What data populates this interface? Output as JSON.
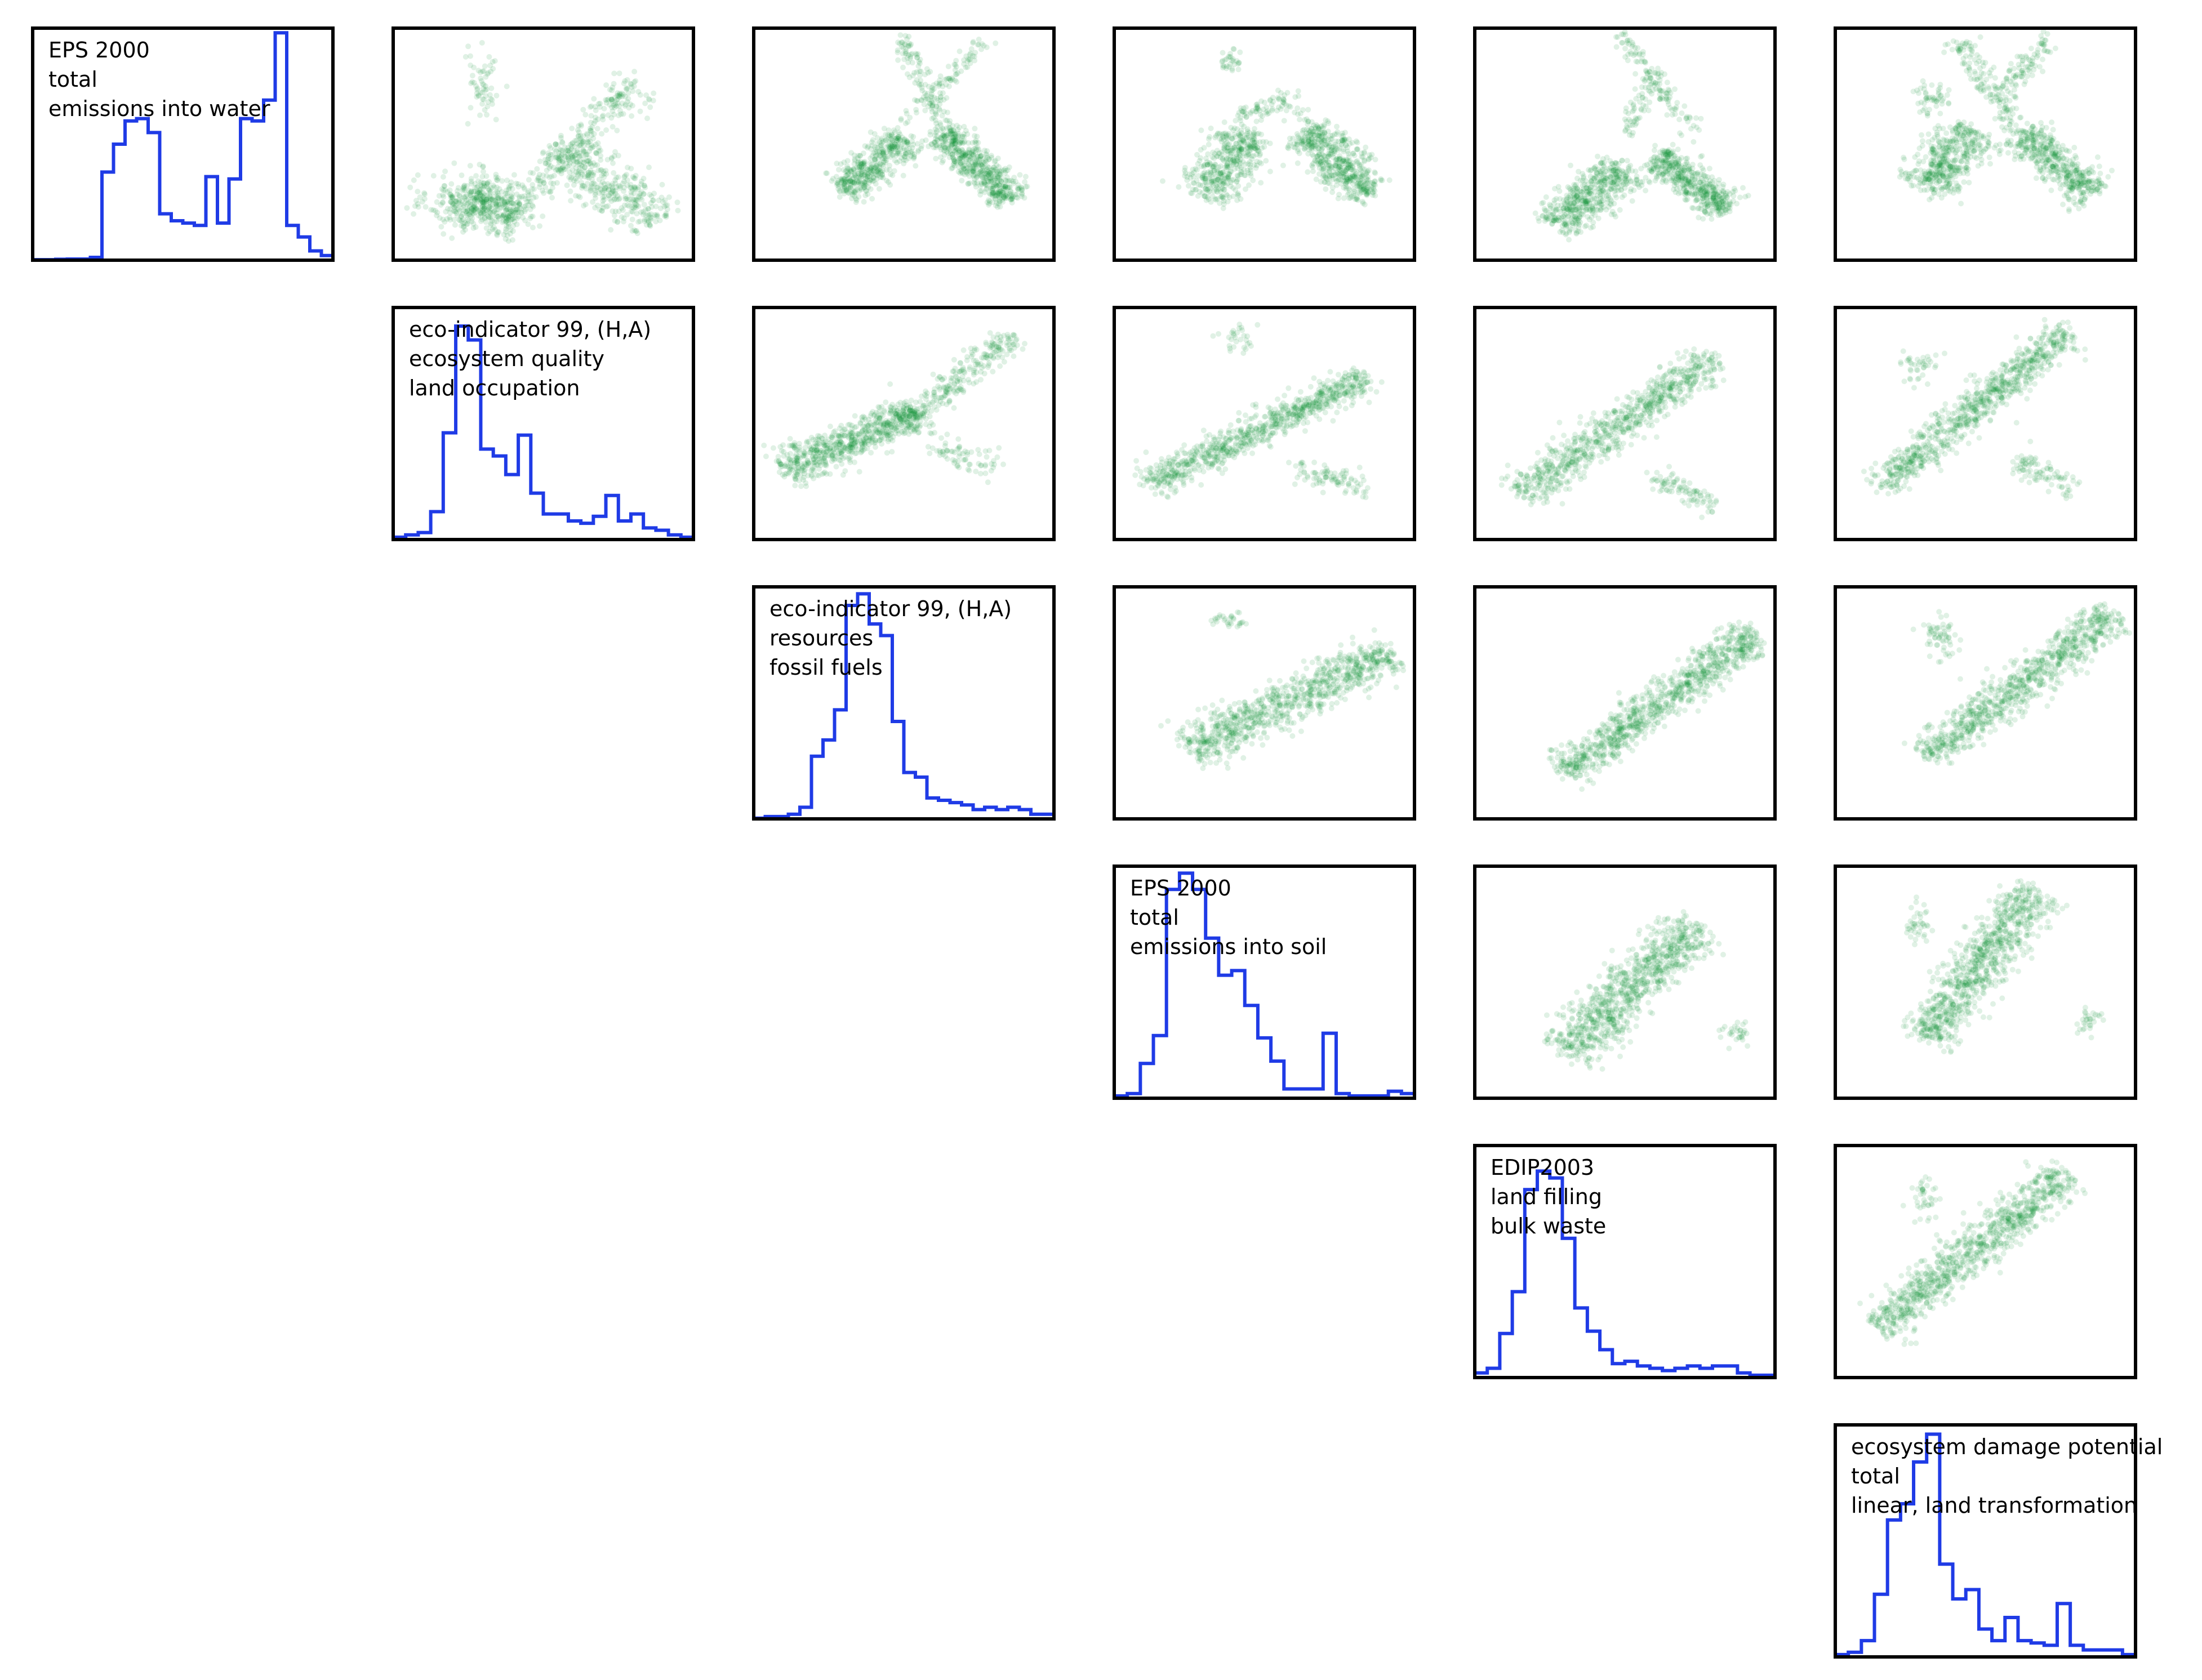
{
  "chart_data": {
    "type": "scatter",
    "layout": "upper-triangular pair plot: histograms on diagonal, pairwise scatter plots above",
    "colors": {
      "histogram": "#1f3be6",
      "scatter": "#008a2a",
      "frame": "#000000"
    },
    "variables": [
      {
        "label_lines": [
          "EPS 2000",
          "total",
          "emissions into water"
        ],
        "histogram": [
          0.002,
          0.002,
          0.004,
          0.005,
          0.005,
          0.012,
          0.38,
          0.5,
          0.6,
          0.61,
          0.55,
          0.2,
          0.17,
          0.16,
          0.15,
          0.36,
          0.16,
          0.35,
          0.61,
          0.6,
          0.69,
          0.98,
          0.15,
          0.1,
          0.04,
          0.02
        ]
      },
      {
        "label_lines": [
          "eco-indicator 99, (H,A)",
          "ecosystem quality",
          "land occupation"
        ],
        "histogram": [
          0.01,
          0.02,
          0.03,
          0.12,
          0.46,
          0.92,
          0.86,
          0.39,
          0.36,
          0.28,
          0.45,
          0.2,
          0.11,
          0.11,
          0.08,
          0.07,
          0.1,
          0.19,
          0.08,
          0.11,
          0.05,
          0.04,
          0.02,
          0.01
        ]
      },
      {
        "label_lines": [
          "eco-indicator 99, (H,A)",
          "resources",
          "fossil fuels"
        ],
        "histogram": [
          0.003,
          0.01,
          0.01,
          0.02,
          0.05,
          0.27,
          0.34,
          0.47,
          0.92,
          0.97,
          0.84,
          0.79,
          0.42,
          0.2,
          0.18,
          0.09,
          0.08,
          0.07,
          0.06,
          0.04,
          0.05,
          0.04,
          0.05,
          0.04,
          0.02,
          0.02
        ]
      },
      {
        "label_lines": [
          "EPS 2000",
          "total",
          "emissions into soil"
        ],
        "histogram": [
          0.01,
          0.02,
          0.15,
          0.27,
          0.9,
          0.97,
          0.9,
          0.69,
          0.53,
          0.55,
          0.4,
          0.26,
          0.16,
          0.04,
          0.04,
          0.04,
          0.28,
          0.02,
          0.01,
          0.01,
          0.01,
          0.03,
          0.02
        ]
      },
      {
        "label_lines": [
          "EDIP2003",
          "land filling",
          "bulk waste"
        ],
        "histogram": [
          0.02,
          0.04,
          0.19,
          0.37,
          0.81,
          0.89,
          0.86,
          0.6,
          0.3,
          0.2,
          0.12,
          0.06,
          0.07,
          0.05,
          0.04,
          0.03,
          0.04,
          0.05,
          0.04,
          0.05,
          0.05,
          0.02,
          0.01,
          0.01
        ]
      },
      {
        "label_lines": [
          "ecosystem damage potential",
          "total",
          "linear, land transformation"
        ],
        "histogram": [
          0.01,
          0.02,
          0.07,
          0.27,
          0.59,
          0.66,
          0.84,
          0.96,
          0.4,
          0.25,
          0.29,
          0.12,
          0.07,
          0.17,
          0.07,
          0.06,
          0.05,
          0.23,
          0.05,
          0.03,
          0.03,
          0.03,
          0.01
        ]
      }
    ],
    "pair_shapes": {
      "0-1": [
        {
          "kind": "cluster",
          "cx": 0.3,
          "cy": 0.25,
          "sx": 0.09,
          "sy": 0.06,
          "n": 480,
          "r": 0
        },
        {
          "kind": "line",
          "x0": 0.55,
          "y0": 0.5,
          "x1": 0.88,
          "y1": 0.16,
          "spread": 0.05,
          "n": 420
        },
        {
          "kind": "line",
          "x0": 0.33,
          "y0": 0.1,
          "x1": 0.8,
          "y1": 0.77,
          "spread": 0.03,
          "n": 200
        },
        {
          "kind": "cluster",
          "cx": 0.3,
          "cy": 0.75,
          "sx": 0.03,
          "sy": 0.08,
          "n": 60,
          "r": 0
        },
        {
          "kind": "cluster",
          "cx": 0.77,
          "cy": 0.68,
          "sx": 0.05,
          "sy": 0.04,
          "n": 50,
          "r": 0
        }
      ],
      "0-2": [
        {
          "kind": "line",
          "x0": 0.3,
          "y0": 0.3,
          "x1": 0.5,
          "y1": 0.53,
          "spread": 0.04,
          "n": 450
        },
        {
          "kind": "line",
          "x0": 0.62,
          "y0": 0.55,
          "x1": 0.86,
          "y1": 0.26,
          "spread": 0.035,
          "n": 550
        },
        {
          "kind": "line",
          "x0": 0.48,
          "y0": 0.98,
          "x1": 0.66,
          "y1": 0.5,
          "spread": 0.02,
          "n": 120
        },
        {
          "kind": "line",
          "x0": 0.5,
          "y0": 0.58,
          "x1": 0.77,
          "y1": 0.96,
          "spread": 0.02,
          "n": 90
        }
      ],
      "0-3": [
        {
          "kind": "line",
          "x0": 0.3,
          "y0": 0.28,
          "x1": 0.45,
          "y1": 0.55,
          "spread": 0.05,
          "n": 450
        },
        {
          "kind": "line",
          "x0": 0.63,
          "y0": 0.55,
          "x1": 0.86,
          "y1": 0.28,
          "spread": 0.04,
          "n": 500
        },
        {
          "kind": "line",
          "x0": 0.42,
          "y0": 0.62,
          "x1": 0.6,
          "y1": 0.7,
          "spread": 0.02,
          "n": 70
        },
        {
          "kind": "line",
          "x0": 0.58,
          "y0": 0.65,
          "x1": 0.84,
          "y1": 0.46,
          "spread": 0.02,
          "n": 60
        },
        {
          "kind": "cluster",
          "cx": 0.38,
          "cy": 0.86,
          "sx": 0.015,
          "sy": 0.03,
          "n": 30,
          "r": 0
        }
      ],
      "0-4": [
        {
          "kind": "line",
          "x0": 0.27,
          "y0": 0.15,
          "x1": 0.5,
          "y1": 0.4,
          "spread": 0.045,
          "n": 520
        },
        {
          "kind": "line",
          "x0": 0.6,
          "y0": 0.45,
          "x1": 0.84,
          "y1": 0.22,
          "spread": 0.035,
          "n": 500
        },
        {
          "kind": "line",
          "x0": 0.48,
          "y0": 0.98,
          "x1": 0.72,
          "y1": 0.55,
          "spread": 0.02,
          "n": 110
        },
        {
          "kind": "line",
          "x0": 0.5,
          "y0": 0.55,
          "x1": 0.62,
          "y1": 0.82,
          "spread": 0.02,
          "n": 70
        }
      ],
      "0-5": [
        {
          "kind": "line",
          "x0": 0.3,
          "y0": 0.3,
          "x1": 0.46,
          "y1": 0.57,
          "spread": 0.05,
          "n": 460
        },
        {
          "kind": "line",
          "x0": 0.62,
          "y0": 0.55,
          "x1": 0.86,
          "y1": 0.28,
          "spread": 0.04,
          "n": 470
        },
        {
          "kind": "line",
          "x0": 0.4,
          "y0": 0.95,
          "x1": 0.62,
          "y1": 0.56,
          "spread": 0.025,
          "n": 140
        },
        {
          "kind": "line",
          "x0": 0.54,
          "y0": 0.7,
          "x1": 0.72,
          "y1": 0.96,
          "spread": 0.025,
          "n": 100
        },
        {
          "kind": "cluster",
          "cx": 0.32,
          "cy": 0.7,
          "sx": 0.03,
          "sy": 0.03,
          "n": 50,
          "r": 0
        }
      ],
      "1-2": [
        {
          "kind": "line",
          "x0": 0.1,
          "y0": 0.3,
          "x1": 0.55,
          "y1": 0.55,
          "spread": 0.04,
          "n": 700
        },
        {
          "kind": "line",
          "x0": 0.5,
          "y0": 0.5,
          "x1": 0.86,
          "y1": 0.88,
          "spread": 0.03,
          "n": 260
        },
        {
          "kind": "line",
          "x0": 0.6,
          "y0": 0.4,
          "x1": 0.82,
          "y1": 0.3,
          "spread": 0.03,
          "n": 70
        }
      ],
      "1-3": [
        {
          "kind": "line",
          "x0": 0.12,
          "y0": 0.24,
          "x1": 0.84,
          "y1": 0.7,
          "spread": 0.035,
          "n": 820
        },
        {
          "kind": "line",
          "x0": 0.6,
          "y0": 0.3,
          "x1": 0.84,
          "y1": 0.22,
          "spread": 0.025,
          "n": 90
        },
        {
          "kind": "cluster",
          "cx": 0.4,
          "cy": 0.86,
          "sx": 0.03,
          "sy": 0.03,
          "n": 30,
          "r": 0
        }
      ],
      "1-4": [
        {
          "kind": "line",
          "x0": 0.15,
          "y0": 0.2,
          "x1": 0.8,
          "y1": 0.78,
          "spread": 0.04,
          "n": 800
        },
        {
          "kind": "line",
          "x0": 0.6,
          "y0": 0.27,
          "x1": 0.8,
          "y1": 0.15,
          "spread": 0.025,
          "n": 90
        }
      ],
      "1-5": [
        {
          "kind": "line",
          "x0": 0.15,
          "y0": 0.23,
          "x1": 0.78,
          "y1": 0.9,
          "spread": 0.035,
          "n": 820
        },
        {
          "kind": "line",
          "x0": 0.6,
          "y0": 0.33,
          "x1": 0.8,
          "y1": 0.23,
          "spread": 0.025,
          "n": 90
        },
        {
          "kind": "cluster",
          "cx": 0.27,
          "cy": 0.75,
          "sx": 0.03,
          "sy": 0.04,
          "n": 40,
          "r": 0
        }
      ],
      "2-3": [
        {
          "kind": "line",
          "x0": 0.25,
          "y0": 0.3,
          "x1": 0.92,
          "y1": 0.72,
          "spread": 0.045,
          "n": 900
        },
        {
          "kind": "cluster",
          "cx": 0.38,
          "cy": 0.86,
          "sx": 0.03,
          "sy": 0.02,
          "n": 30,
          "r": 0
        }
      ],
      "2-4": [
        {
          "kind": "line",
          "x0": 0.3,
          "y0": 0.2,
          "x1": 0.93,
          "y1": 0.8,
          "spread": 0.04,
          "n": 950
        }
      ],
      "2-5": [
        {
          "kind": "line",
          "x0": 0.3,
          "y0": 0.27,
          "x1": 0.93,
          "y1": 0.88,
          "spread": 0.04,
          "n": 880
        },
        {
          "kind": "cluster",
          "cx": 0.35,
          "cy": 0.78,
          "sx": 0.03,
          "sy": 0.05,
          "n": 60,
          "r": 0
        }
      ],
      "3-4": [
        {
          "kind": "line",
          "x0": 0.3,
          "y0": 0.2,
          "x1": 0.74,
          "y1": 0.75,
          "spread": 0.05,
          "n": 900
        },
        {
          "kind": "cluster",
          "cx": 0.87,
          "cy": 0.27,
          "sx": 0.02,
          "sy": 0.03,
          "n": 30,
          "r": 0
        }
      ],
      "3-5": [
        {
          "kind": "line",
          "x0": 0.3,
          "y0": 0.25,
          "x1": 0.67,
          "y1": 0.9,
          "spread": 0.05,
          "n": 880
        },
        {
          "kind": "cluster",
          "cx": 0.27,
          "cy": 0.75,
          "sx": 0.02,
          "sy": 0.04,
          "n": 40,
          "r": 0
        },
        {
          "kind": "cluster",
          "cx": 0.85,
          "cy": 0.33,
          "sx": 0.02,
          "sy": 0.03,
          "n": 30,
          "r": 0
        }
      ],
      "4-5": [
        {
          "kind": "line",
          "x0": 0.15,
          "y0": 0.22,
          "x1": 0.77,
          "y1": 0.88,
          "spread": 0.045,
          "n": 940
        },
        {
          "kind": "cluster",
          "cx": 0.3,
          "cy": 0.76,
          "sx": 0.02,
          "sy": 0.05,
          "n": 40,
          "r": 0
        }
      ]
    }
  }
}
